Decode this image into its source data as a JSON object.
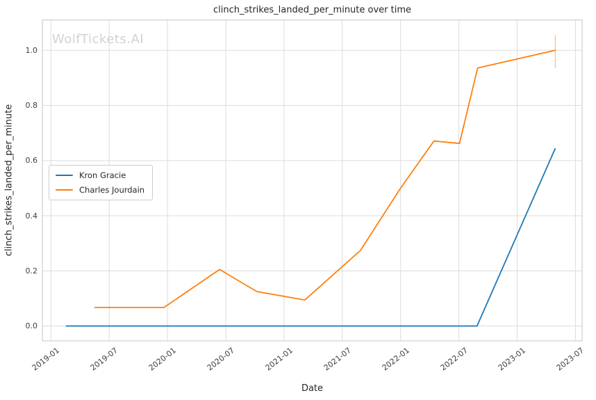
{
  "chart_data": {
    "type": "line",
    "title": "clinch_strikes_landed_per_minute over time",
    "xlabel": "Date",
    "ylabel": "clinch_strikes_landed_per_minute",
    "watermark": "WolfTickets.AI",
    "grid": true,
    "legend_position": "center-left",
    "x_tick_labels": [
      "2019-01",
      "2019-07",
      "2020-01",
      "2020-07",
      "2021-01",
      "2021-07",
      "2022-01",
      "2022-07",
      "2023-01",
      "2023-07"
    ],
    "y_tick_labels": [
      "0.0",
      "0.2",
      "0.4",
      "0.6",
      "0.8",
      "1.0"
    ],
    "xlim_months": [
      -0.88,
      54.69
    ],
    "ylim": [
      -0.054,
      1.11
    ],
    "series": [
      {
        "name": "Kron Gracie",
        "color": "#1f77b4",
        "points": [
          [
            "2019-02-17",
            0.0
          ],
          [
            "2022-08-27",
            0.0
          ],
          [
            "2023-04-29",
            0.645
          ]
        ],
        "error_bars": []
      },
      {
        "name": "Charles Jourdain",
        "color": "#ff7f0e",
        "points": [
          [
            "2019-05-15",
            0.067
          ],
          [
            "2019-12-20",
            0.067
          ],
          [
            "2020-06-12",
            0.205
          ],
          [
            "2020-10-07",
            0.125
          ],
          [
            "2021-03-05",
            0.094
          ],
          [
            "2021-08-27",
            0.274
          ],
          [
            "2022-01-01",
            0.5
          ],
          [
            "2022-04-14",
            0.671
          ],
          [
            "2022-07-03",
            0.662
          ],
          [
            "2022-08-29",
            0.936
          ],
          [
            "2023-04-29",
            1.0
          ]
        ],
        "error_bars": [
          {
            "x": "2023-04-29",
            "low": 0.935,
            "high": 1.055
          }
        ]
      }
    ]
  }
}
